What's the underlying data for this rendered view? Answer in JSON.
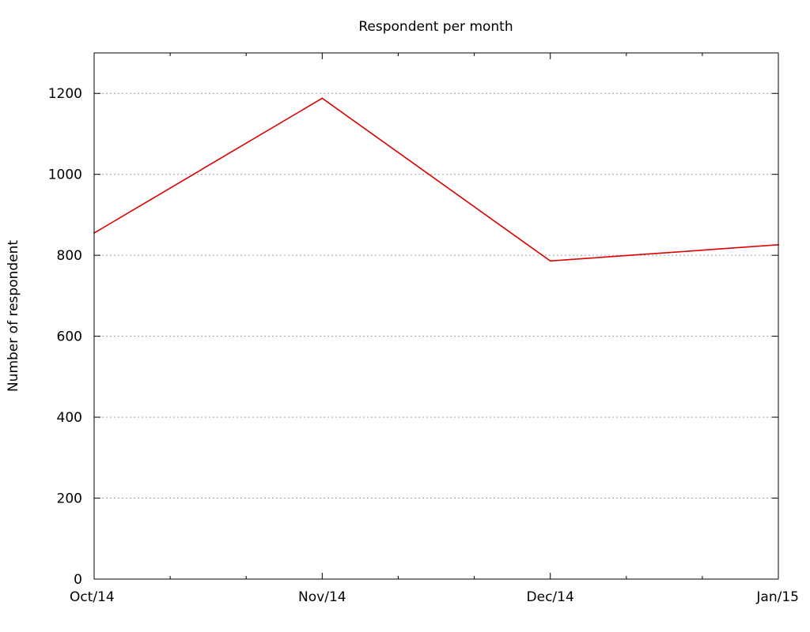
{
  "chart_data": {
    "type": "line",
    "title": "Respondent per month",
    "xlabel": "",
    "ylabel": "Number of respondent",
    "categories": [
      "Oct/14",
      "Nov/14",
      "Dec/14",
      "Jan/15"
    ],
    "x_minor_subdivisions": 3,
    "ylim": [
      0,
      1300
    ],
    "yticks": [
      0,
      200,
      400,
      600,
      800,
      1000,
      1200
    ],
    "grid": "horizontal",
    "series": [
      {
        "color": "#dd0000",
        "values": [
          855,
          1188,
          786,
          826
        ]
      }
    ]
  }
}
